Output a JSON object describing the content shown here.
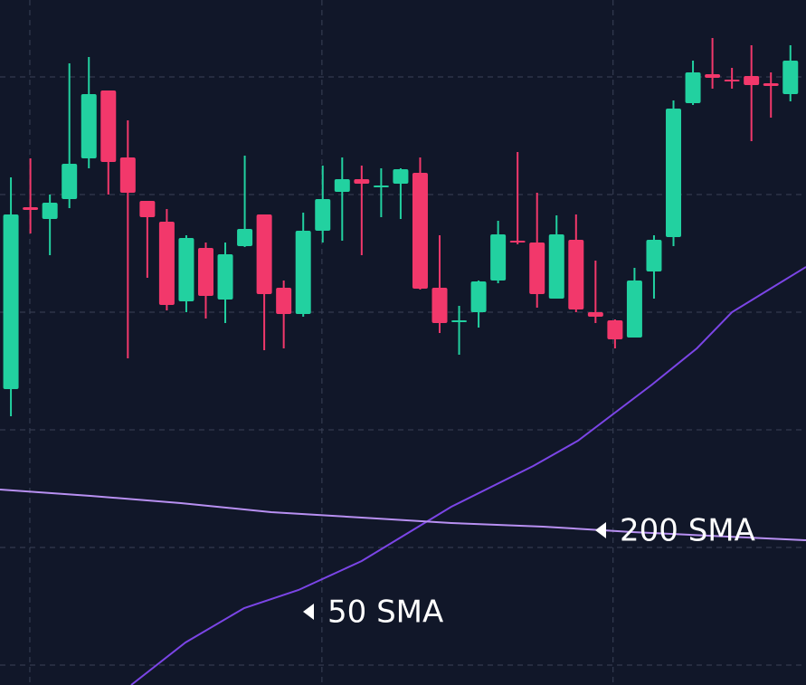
{
  "chart_data": {
    "type": "candlestick",
    "x": [
      0,
      1,
      2,
      3,
      4,
      5,
      6,
      7,
      8,
      9,
      10,
      11,
      12,
      13,
      14,
      15,
      16,
      17,
      18,
      19,
      20,
      21,
      22,
      23,
      24,
      25,
      26,
      27,
      28,
      29,
      30,
      31,
      32,
      33,
      34,
      35,
      36,
      37,
      38,
      39,
      40
    ],
    "open": [
      327,
      528,
      515,
      537,
      582,
      657,
      583,
      535,
      512,
      424,
      483,
      426,
      485,
      520,
      439,
      410,
      502,
      545,
      559,
      551,
      554,
      566,
      439,
      401,
      412,
      447,
      491,
      489,
      427,
      492,
      412,
      403,
      384,
      457,
      495,
      643,
      675,
      669,
      673,
      665,
      653
    ],
    "high": [
      561,
      582,
      542,
      687,
      694,
      657,
      624,
      535,
      526,
      497,
      489,
      489,
      585,
      520,
      447,
      522,
      574,
      583,
      574,
      571,
      571,
      583,
      497,
      419,
      447,
      513,
      589,
      544,
      519,
      520,
      469,
      404,
      461,
      497,
      646,
      690,
      715,
      682,
      707,
      677,
      707
    ],
    "low": [
      297,
      499,
      475,
      527,
      571,
      542,
      361,
      450,
      414,
      412,
      405,
      400,
      484,
      370,
      372,
      407,
      489,
      491,
      475,
      517,
      515,
      437,
      389,
      365,
      395,
      444,
      487,
      417,
      427,
      412,
      400,
      372,
      384,
      427,
      485,
      641,
      659,
      659,
      601,
      627,
      645
    ],
    "close": [
      520,
      525,
      533,
      576,
      653,
      578,
      544,
      517,
      420,
      494,
      430,
      476,
      504,
      432,
      410,
      502,
      537,
      559,
      554,
      552,
      570,
      438,
      400,
      403,
      446,
      498,
      489,
      432,
      498,
      415,
      407,
      382,
      447,
      492,
      637,
      677,
      671,
      667,
      663,
      662,
      690
    ],
    "up_color": "#22d1a0",
    "down_color": "#f2386b",
    "xlim": [
      -0.56,
      40.8
    ],
    "ylim": [
      0,
      757
    ],
    "xticks": [
      0.97,
      15.96,
      30.9
    ],
    "yticks": [
      22,
      152,
      282,
      412,
      542,
      672
    ],
    "grid": true,
    "series": [
      {
        "name": "50 SMA",
        "type": "line",
        "color": "#7b45e6",
        "x": [
          6.17,
          8.96,
          11.97,
          14.76,
          18.0,
          20.3,
          22.6,
          26.8,
          29.1,
          32.9,
          35.2,
          37.0,
          38.9,
          40.8
        ],
        "values": [
          0,
          47,
          85,
          105,
          137,
          167,
          197,
          242,
          270,
          332,
          372,
          412,
          437,
          462
        ]
      },
      {
        "name": "200 SMA",
        "type": "line",
        "color": "#b890f2",
        "x": [
          -0.56,
          4.08,
          8.72,
          13.36,
          18.0,
          22.6,
          27.3,
          31.9,
          40.8
        ],
        "values": [
          216,
          209,
          201,
          191,
          185,
          179,
          175,
          169,
          160
        ]
      }
    ]
  }
}
